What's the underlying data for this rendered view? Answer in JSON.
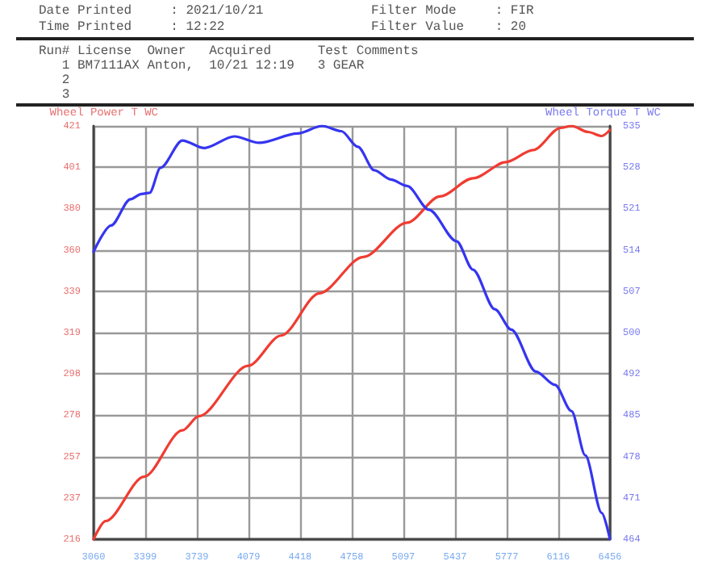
{
  "chart_data": {
    "type": "line",
    "annotations": [
      "Date Printed     : 2021/10/21",
      "Filter Mode     : FIR",
      "Time Printed     : 12:22",
      "Filter Value    : 20",
      "Run# License  Owner   Acquired      Test Comments",
      "   1 BM7111AX Anton,  10/21 12:19   3 GEAR",
      "   2",
      "   3"
    ],
    "ylabel": "Wheel Power T WC",
    "y2label": "Wheel Torque T WC",
    "xlim": [
      3060,
      6456
    ],
    "xticks": [
      3060,
      3399,
      3739,
      4079,
      4418,
      4758,
      5097,
      5437,
      5777,
      6116,
      6456
    ],
    "ylim": [
      216,
      421
    ],
    "yticks": [
      {
        "value": 216,
        "label": "216"
      },
      {
        "value": 236.5,
        "label": "237"
      },
      {
        "value": 257,
        "label": "257"
      },
      {
        "value": 277.5,
        "label": "278"
      },
      {
        "value": 298,
        "label": "298"
      },
      {
        "value": 318.5,
        "label": "319"
      },
      {
        "value": 339,
        "label": "339"
      },
      {
        "value": 359.5,
        "label": "360"
      },
      {
        "value": 380,
        "label": "380"
      },
      {
        "value": 400.5,
        "label": "401"
      },
      {
        "value": 421,
        "label": "421"
      }
    ],
    "y2lim": [
      464,
      535
    ],
    "y2ticks": [
      {
        "value": 464,
        "label": "464"
      },
      {
        "value": 471.1,
        "label": "471"
      },
      {
        "value": 478.2,
        "label": "478"
      },
      {
        "value": 485.3,
        "label": "485"
      },
      {
        "value": 492.4,
        "label": "492"
      },
      {
        "value": 499.5,
        "label": "500"
      },
      {
        "value": 506.6,
        "label": "507"
      },
      {
        "value": 513.7,
        "label": "514"
      },
      {
        "value": 520.8,
        "label": "521"
      },
      {
        "value": 527.9,
        "label": "528"
      },
      {
        "value": 535,
        "label": "535"
      }
    ],
    "grid": true,
    "marker": "none",
    "line_style": "solid",
    "series": [
      {
        "color": "#f03c32",
        "x": [
          3060,
          3139,
          3392,
          3644,
          3752,
          4077,
          4293,
          4545,
          4834,
          5122,
          5338,
          5555,
          5771,
          5951,
          6131,
          6204,
          6312,
          6402,
          6456
        ],
        "values": [
          216,
          225,
          247,
          270,
          277,
          302,
          317,
          338,
          356,
          373,
          386,
          395,
          403,
          409,
          420,
          421,
          418,
          416,
          419
        ]
      },
      {
        "color": "#3535f0",
        "axis": "y2",
        "x": [
          3060,
          3175,
          3302,
          3374,
          3428,
          3500,
          3644,
          3788,
          3986,
          4149,
          4401,
          4563,
          4689,
          4798,
          4906,
          5014,
          5122,
          5266,
          5447,
          5555,
          5699,
          5807,
          5969,
          6095,
          6203,
          6294,
          6402,
          6456
        ],
        "values": [
          513.4,
          517.9,
          522.4,
          523.3,
          523.5,
          527.8,
          532.5,
          531.2,
          533.2,
          532.1,
          533.7,
          535,
          534.1,
          531.4,
          527.4,
          525.8,
          524.7,
          520.6,
          515.2,
          510.3,
          503.5,
          500,
          492.8,
          490.5,
          486,
          478.4,
          468.5,
          464
        ]
      }
    ]
  }
}
